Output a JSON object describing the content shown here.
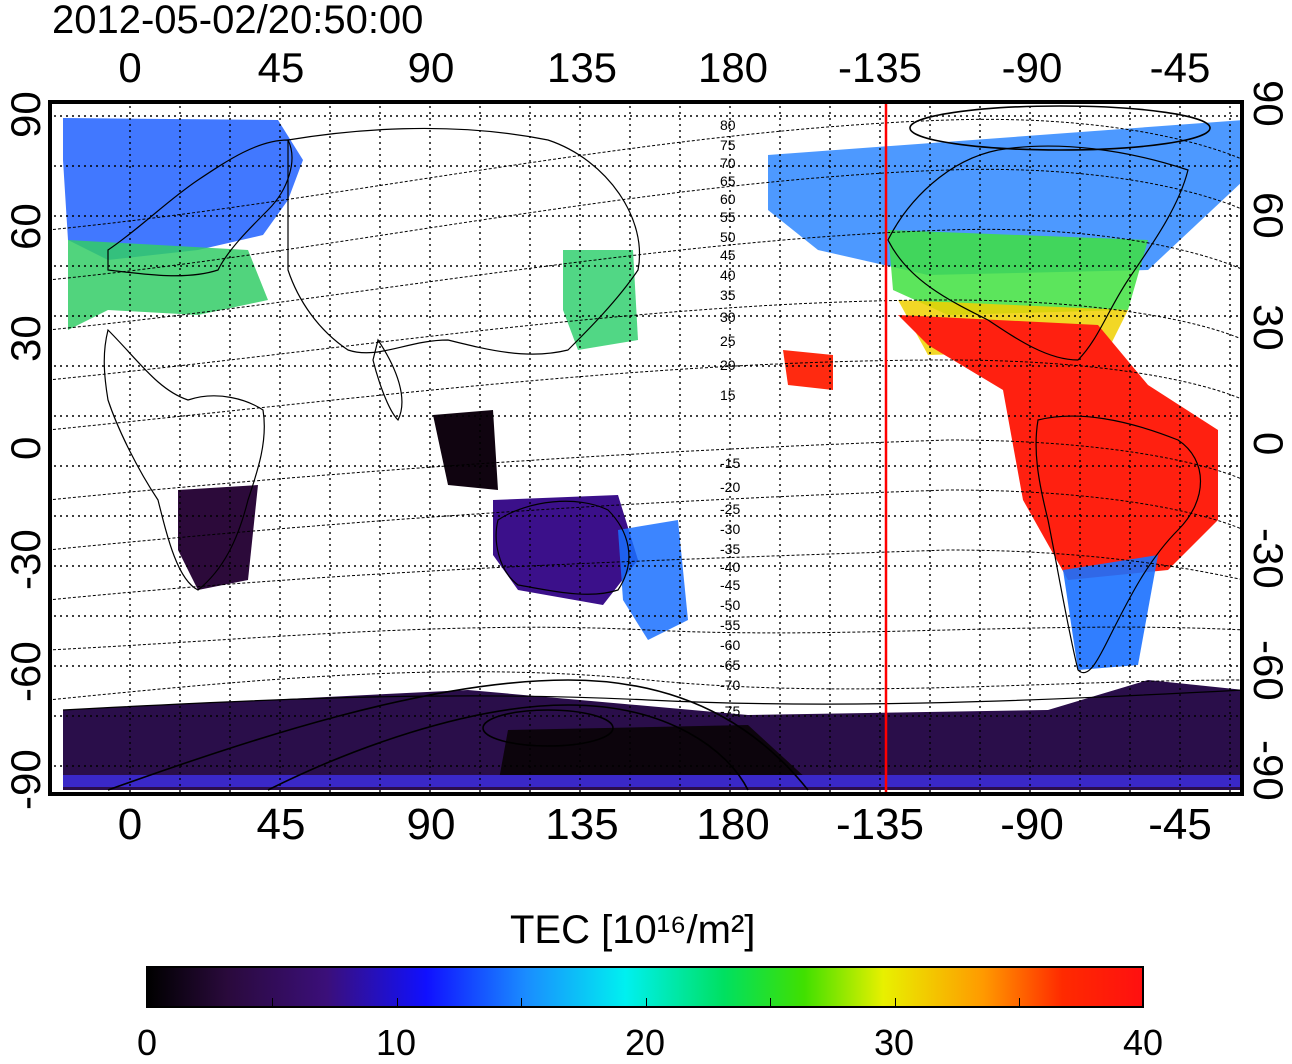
{
  "title": "2012-05-02/20:50:00",
  "top_lon_ticks": [
    "0",
    "45",
    "90",
    "135",
    "180",
    "-135",
    "-90",
    "-45"
  ],
  "bottom_lon_ticks": [
    "0",
    "45",
    "90",
    "135",
    "180",
    "-135",
    "-90",
    "-45"
  ],
  "left_lat_ticks": [
    "90",
    "60",
    "30",
    "0",
    "-30",
    "-60",
    "-90"
  ],
  "right_lat_ticks": [
    "90",
    "60",
    "30",
    "0",
    "-30",
    "-60",
    "-90"
  ],
  "contour_labels": [
    "80",
    "75",
    "70",
    "65",
    "60",
    "55",
    "50",
    "45",
    "40",
    "35",
    "30",
    "25",
    "20",
    "15",
    "-15",
    "-20",
    "-25",
    "-30",
    "-35",
    "-40",
    "-45",
    "-50",
    "-55",
    "-60",
    "-65",
    "-70",
    "-75"
  ],
  "terminator_color": "#ff0000",
  "colorbar": {
    "title": "TEC  [10¹⁶/m²]",
    "labels": [
      "0",
      "10",
      "20",
      "30",
      "40"
    ],
    "min": 0,
    "max": 40
  },
  "map_data": {
    "type": "map",
    "projection": "equirectangular",
    "lon_range": [
      -20,
      340
    ],
    "lat_range": [
      -90,
      90
    ],
    "grid": true,
    "terminator_lon": -135,
    "field": "TEC"
  }
}
